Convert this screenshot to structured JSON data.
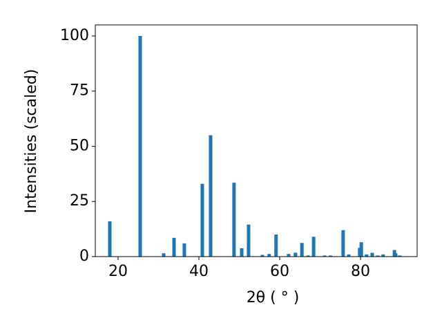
{
  "chart_data": {
    "type": "bar",
    "x_label": "2θ ( ° )",
    "y_label": "Intensities (scaled)",
    "color": "#1f77b4",
    "x": [
      17.95,
      25.47,
      31.28,
      33.85,
      36.4,
      40.85,
      42.9,
      48.7,
      50.6,
      52.3,
      55.7,
      57.4,
      59.1,
      62.2,
      63.9,
      65.5,
      67.0,
      68.4,
      71.1,
      72.6,
      75.7,
      77.1,
      79.8,
      80.2,
      81.5,
      82.9,
      84.3,
      85.6,
      88.4,
      88.7,
      89.7
    ],
    "values": [
      16,
      100,
      1.5,
      8.5,
      6,
      33,
      55,
      33.5,
      3.8,
      14.5,
      0.8,
      1.2,
      10,
      1.2,
      1.8,
      6.2,
      0.5,
      9,
      0.5,
      0.5,
      12,
      1,
      4,
      6.5,
      1,
      1.7,
      0.5,
      1,
      3,
      1.5,
      0.5
    ],
    "xlim": [
      14.36,
      94.02
    ],
    "ylim": [
      0,
      105
    ],
    "xticks": [
      20,
      40,
      60,
      80
    ],
    "yticks": [
      0,
      25,
      50,
      75,
      100
    ]
  }
}
